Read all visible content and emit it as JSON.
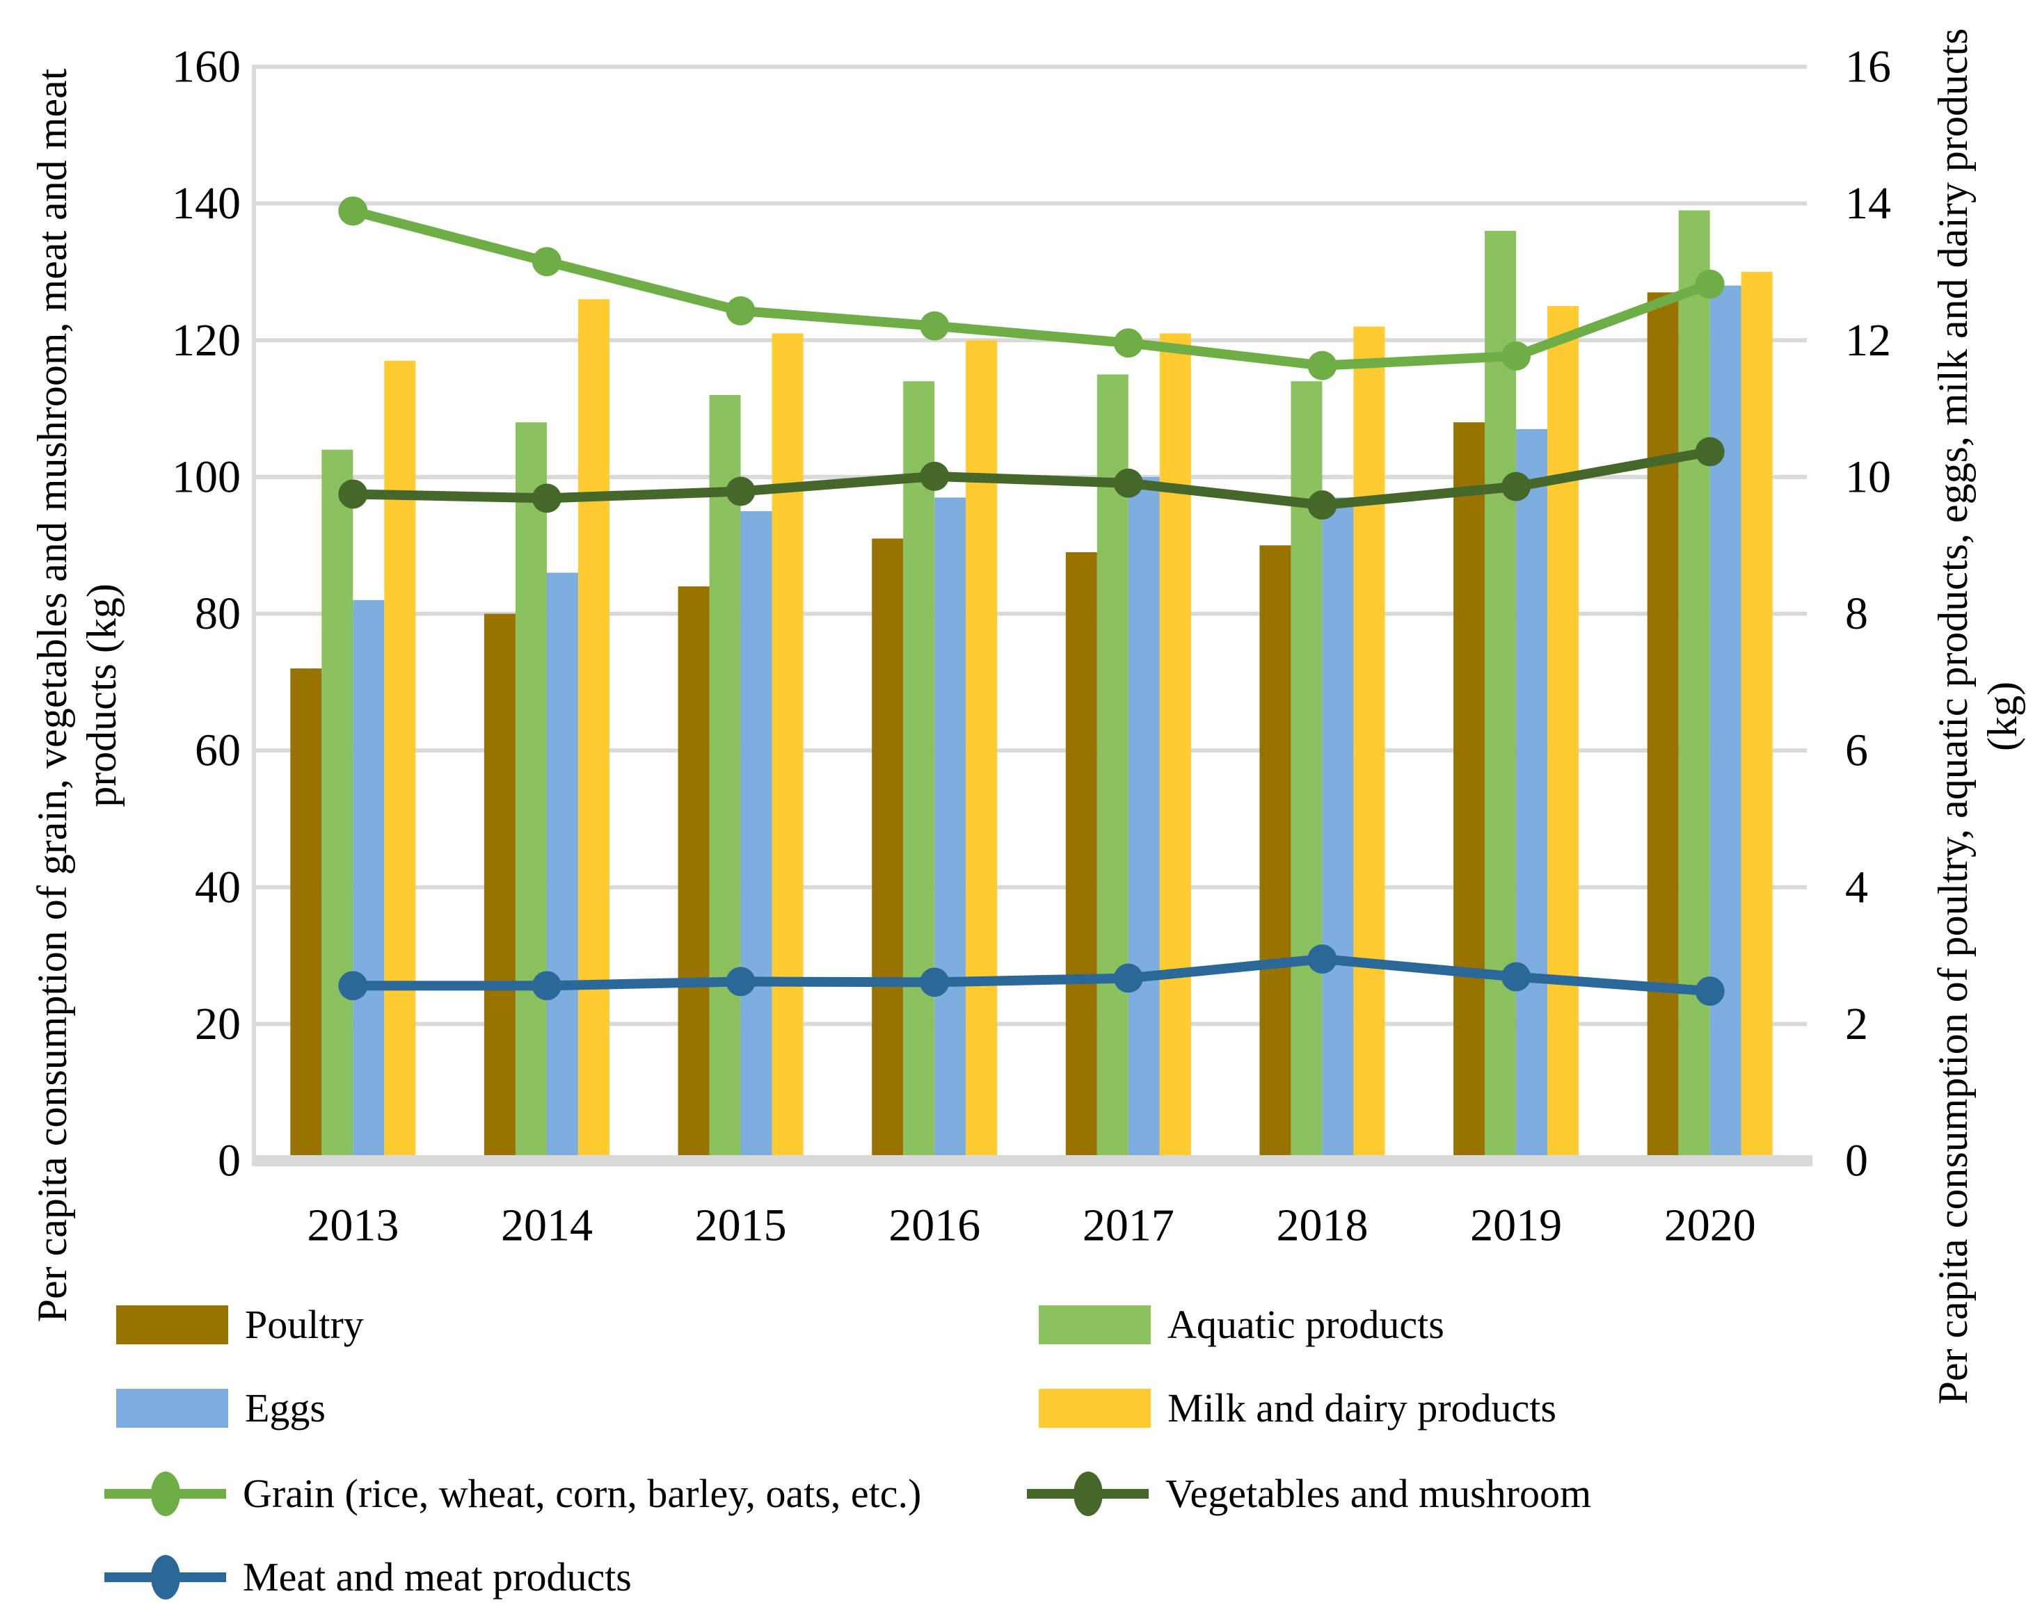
{
  "chart_data": {
    "type": "bar",
    "subtype": "grouped-bars-with-lines-combo",
    "categories": [
      "2013",
      "2014",
      "2015",
      "2016",
      "2017",
      "2018",
      "2019",
      "2020"
    ],
    "bar_series": [
      {
        "name": "Poultry",
        "axis": "right",
        "color": "#997300",
        "values": [
          7.2,
          8.0,
          8.4,
          9.1,
          8.9,
          9.0,
          10.8,
          12.7
        ]
      },
      {
        "name": "Aquatic products",
        "axis": "right",
        "color": "#8bc15f",
        "values": [
          10.4,
          10.8,
          11.2,
          11.4,
          11.5,
          11.4,
          13.6,
          13.9
        ]
      },
      {
        "name": "Eggs",
        "axis": "right",
        "color": "#7daedf",
        "values": [
          8.2,
          8.6,
          9.5,
          9.7,
          10.0,
          9.7,
          10.7,
          12.8
        ]
      },
      {
        "name": "Milk and dairy products",
        "axis": "right",
        "color": "#ffcb30",
        "values": [
          11.7,
          12.6,
          12.1,
          12.0,
          12.1,
          12.2,
          12.5,
          13.0
        ]
      }
    ],
    "line_series": [
      {
        "name": "Grain (rice, wheat, corn, barley, oats, etc.)",
        "axis": "left",
        "color": "#6fae47",
        "values": [
          138.9,
          131.5,
          124.3,
          122.1,
          119.6,
          116.3,
          117.7,
          128.2
        ]
      },
      {
        "name": "Vegetables and mushroom",
        "axis": "left",
        "color": "#45682a",
        "values": [
          97.5,
          96.9,
          97.9,
          100.1,
          99.1,
          95.9,
          98.6,
          103.7
        ]
      },
      {
        "name": "Meat and meat products",
        "axis": "left",
        "color": "#2a6899",
        "values": [
          25.6,
          25.6,
          26.2,
          26.1,
          26.7,
          29.5,
          26.9,
          24.8
        ]
      }
    ],
    "left_axis": {
      "title": "Per capita consumption of grain, vegetables and mushroom, meat and meat products (kg)",
      "min": 0,
      "max": 160,
      "ticks": [
        160,
        140,
        120,
        100,
        80,
        60,
        40,
        20,
        0
      ]
    },
    "right_axis": {
      "title": "Per capita consumption of  poultry, aquatic products, eggs, milk and dairy products (kg)",
      "min": 0,
      "max": 16,
      "ticks": [
        16,
        14,
        12,
        10,
        8,
        6,
        4,
        2,
        0
      ]
    },
    "grid": true,
    "legend_position": "bottom"
  },
  "legend": {
    "poultry": "Poultry",
    "aquatic": "Aquatic products",
    "eggs": "Eggs",
    "milk": "Milk and dairy products",
    "grain": "Grain (rice, wheat, corn, barley, oats, etc.)",
    "vegetables": "Vegetables and mushroom",
    "meat": "Meat and meat products"
  },
  "colors": {
    "poultry": "#997300",
    "aquatic": "#8bc15f",
    "eggs": "#7daedf",
    "milk": "#ffcb30",
    "grain": "#6fae47",
    "vegetables": "#45682a",
    "meat": "#2a6899",
    "gridline": "#d9d9d9",
    "axis_line": "#d9d9d9",
    "text": "#000000"
  }
}
